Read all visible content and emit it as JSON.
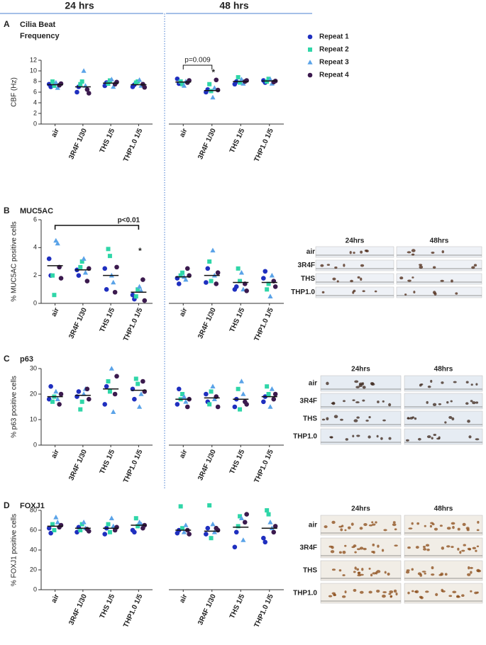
{
  "columns": [
    "24 hrs",
    "48 hrs"
  ],
  "legend": [
    {
      "name": "Repeat 1",
      "color": "#1f2fbf",
      "marker": "circle"
    },
    {
      "name": "Repeat 2",
      "color": "#2fd6a8",
      "marker": "square"
    },
    {
      "name": "Repeat 3",
      "color": "#5aa3e8",
      "marker": "triangle"
    },
    {
      "name": "Repeat 4",
      "color": "#3b1a4e",
      "marker": "circle"
    }
  ],
  "chart_data": [
    {
      "type": "scatter",
      "panel": "A",
      "title": [
        "Cilia Beat",
        "Frequency"
      ],
      "ylabel": "CBF (Hz)",
      "categories": [
        "air",
        "3R4F 1/30",
        "THS 1/5",
        "THP1.0 1/5"
      ],
      "ylim": [
        0,
        12
      ],
      "yticks": [
        0,
        2,
        4,
        6,
        8,
        10,
        12
      ],
      "series": [
        {
          "values": [
            [
              7.5,
              7.0
            ],
            [
              6.0,
              7.0
            ],
            [
              7.2,
              7.8
            ],
            [
              7.0,
              7.4
            ]
          ]
        },
        {
          "values": [
            [
              8.0,
              7.2
            ],
            [
              7.5,
              8.0
            ],
            [
              7.6,
              8.2
            ],
            [
              7.8,
              8.0
            ]
          ]
        },
        {
          "values": [
            [
              7.8,
              6.8
            ],
            [
              10.0,
              7.2
            ],
            [
              8.4,
              7.0
            ],
            [
              8.3,
              7.2
            ]
          ]
        },
        {
          "values": [
            [
              7.3,
              7.6
            ],
            [
              6.5,
              5.8
            ],
            [
              7.5,
              7.9
            ],
            [
              7.5,
              6.9
            ]
          ]
        }
      ],
      "means": [
        7.4,
        7.0,
        7.7,
        7.4
      ]
    },
    {
      "type": "scatter",
      "categories": [
        "air",
        "3R4F 1/30",
        "THS 1/5",
        "THP1.0 1/5"
      ],
      "ylim": [
        0,
        12
      ],
      "series": [
        {
          "values": [
            [
              8.5,
              7.6
            ],
            [
              6.0,
              6.5
            ],
            [
              7.5,
              8.0
            ],
            [
              8.2,
              7.8
            ]
          ]
        },
        {
          "values": [
            [
              8.0,
              7.5
            ],
            [
              7.5,
              6.2
            ],
            [
              8.8,
              7.8
            ],
            [
              8.0,
              8.5
            ]
          ]
        },
        {
          "values": [
            [
              7.2,
              8.0
            ],
            [
              5.0,
              6.8
            ],
            [
              8.4,
              7.6
            ],
            [
              8.4,
              7.6
            ]
          ]
        },
        {
          "values": [
            [
              7.8,
              8.2
            ],
            [
              8.3,
              6.4
            ],
            [
              8.0,
              8.2
            ],
            [
              7.9,
              8.1
            ]
          ]
        }
      ],
      "means": [
        7.9,
        6.3,
        8.0,
        8.1
      ],
      "annotations": [
        {
          "text": "p=0.009",
          "from": 0,
          "to": 1
        },
        {
          "text": "*",
          "category": 1
        }
      ]
    },
    {
      "type": "scatter",
      "panel": "B",
      "title": [
        "MUC5AC"
      ],
      "ylabel": "% MUC5AC positive cells",
      "categories": [
        "air",
        "3R4F 1/30",
        "THS 1/5",
        "THP1.0 1/5"
      ],
      "ylim": [
        0,
        6
      ],
      "yticks": [
        0,
        2,
        4,
        6
      ],
      "series": [
        {
          "values": [
            [
              3.2,
              2.0
            ],
            [
              2.4,
              2.0
            ],
            [
              2.5,
              1.0
            ],
            [
              0.6,
              0.3
            ]
          ]
        },
        {
          "values": [
            [
              2.0,
              0.6
            ],
            [
              2.6,
              3.0
            ],
            [
              3.9,
              3.4
            ],
            [
              0.5,
              1.0
            ]
          ]
        },
        {
          "values": [
            [
              4.5,
              4.3
            ],
            [
              3.2,
              2.2
            ],
            [
              2.0,
              1.5
            ],
            [
              1.2,
              0.9
            ]
          ]
        },
        {
          "values": [
            [
              2.6,
              1.8
            ],
            [
              1.6,
              2.5
            ],
            [
              0.8,
              2.6
            ],
            [
              1.7,
              0.2
            ]
          ]
        }
      ],
      "means": [
        2.7,
        2.4,
        2.0,
        0.8
      ],
      "annotations": [
        {
          "text": "p<0.01",
          "from": 0,
          "to": 3
        },
        {
          "text": "*",
          "category": 3
        }
      ]
    },
    {
      "type": "scatter",
      "categories": [
        "air",
        "3R4F 1/30",
        "THS 1/5",
        "THP1.0 1/5"
      ],
      "ylim": [
        0,
        6
      ],
      "series": [
        {
          "values": [
            [
              1.8,
              1.4
            ],
            [
              1.5,
              2.5
            ],
            [
              1.0,
              1.2
            ],
            [
              1.8,
              2.3
            ]
          ]
        },
        {
          "values": [
            [
              2.0,
              2.2
            ],
            [
              3.0,
              1.6
            ],
            [
              2.5,
              1.6
            ],
            [
              1.0,
              1.4
            ]
          ]
        },
        {
          "values": [
            [
              1.9,
              1.7
            ],
            [
              3.8,
              2.0
            ],
            [
              2.2,
              1.0
            ],
            [
              0.5,
              2.0
            ]
          ]
        },
        {
          "values": [
            [
              2.5,
              2.0
            ],
            [
              1.4,
              2.2
            ],
            [
              1.4,
              0.9
            ],
            [
              1.6,
              1.2
            ]
          ]
        }
      ],
      "means": [
        1.9,
        2.0,
        1.5,
        1.5
      ]
    },
    {
      "type": "scatter",
      "panel": "C",
      "title": [
        "p63"
      ],
      "ylabel": "% p63 positive cells",
      "categories": [
        "air",
        "3R4F 1/30",
        "THS 1/5",
        "THP1.0 1/5"
      ],
      "ylim": [
        0,
        30
      ],
      "yticks": [
        0,
        10,
        20,
        30
      ],
      "series": [
        {
          "values": [
            [
              18,
              23
            ],
            [
              19,
              21
            ],
            [
              16,
              23
            ],
            [
              22,
              18
            ]
          ]
        },
        {
          "values": [
            [
              17,
              19
            ],
            [
              14,
              17
            ],
            [
              25,
              21
            ],
            [
              26,
              24
            ]
          ]
        },
        {
          "values": [
            [
              21,
              18
            ],
            [
              20,
              22
            ],
            [
              30,
              13
            ],
            [
              15,
              20
            ]
          ]
        },
        {
          "values": [
            [
              16,
              20
            ],
            [
              22,
              18
            ],
            [
              20,
              27
            ],
            [
              25,
              21
            ]
          ]
        }
      ],
      "means": [
        19,
        19.5,
        22,
        21.5
      ]
    },
    {
      "type": "scatter",
      "categories": [
        "air",
        "3R4F 1/30",
        "THS 1/5",
        "THP1.0 1/5"
      ],
      "ylim": [
        0,
        30
      ],
      "series": [
        {
          "values": [
            [
              16,
              22
            ],
            [
              20,
              17
            ],
            [
              15,
              18
            ],
            [
              17,
              19
            ]
          ]
        },
        {
          "values": [
            [
              18,
              20
            ],
            [
              16,
              21
            ],
            [
              22,
              14
            ],
            [
              23,
              20
            ]
          ]
        },
        {
          "values": [
            [
              19,
              17
            ],
            [
              23,
              18
            ],
            [
              25,
              20
            ],
            [
              15,
              22
            ]
          ]
        },
        {
          "values": [
            [
              15,
              18
            ],
            [
              19,
              15
            ],
            [
              17,
              16
            ],
            [
              18,
              20
            ]
          ]
        }
      ],
      "means": [
        18,
        18.5,
        18,
        19
      ]
    },
    {
      "type": "scatter",
      "panel": "D",
      "title": [
        "FOXJ1"
      ],
      "ylabel": "% FOXJ1 positive cells",
      "categories": [
        "air",
        "3R4F 1/30",
        "THS 1/5",
        "THP1.0 1/5"
      ],
      "ylim": [
        0,
        80
      ],
      "yticks": [
        0,
        20,
        40,
        60,
        80
      ],
      "series": [
        {
          "values": [
            [
              62,
              57
            ],
            [
              58,
              63
            ],
            [
              56,
              62
            ],
            [
              60,
              58
            ]
          ]
        },
        {
          "values": [
            [
              66,
              60
            ],
            [
              60,
              66
            ],
            [
              66,
              58
            ],
            [
              72,
              64
            ]
          ]
        },
        {
          "values": [
            [
              73,
              68
            ],
            [
              68,
              62
            ],
            [
              72,
              64
            ],
            [
              68,
              66
            ]
          ]
        },
        {
          "values": [
            [
              63,
              65
            ],
            [
              61,
              59
            ],
            [
              60,
              63
            ],
            [
              62,
              65
            ]
          ]
        }
      ],
      "means": [
        64,
        62,
        62,
        65
      ]
    },
    {
      "type": "scatter",
      "categories": [
        "air",
        "3R4F 1/30",
        "THS 1/5",
        "THP1.0 1/5"
      ],
      "ylim": [
        0,
        80
      ],
      "series": [
        {
          "values": [
            [
              57,
              60
            ],
            [
              56,
              62
            ],
            [
              43,
              58
            ],
            [
              52,
              48
            ]
          ]
        },
        {
          "values": [
            [
              84,
              62
            ],
            [
              85,
              52
            ],
            [
              64,
              74
            ],
            [
              80,
              76
            ]
          ]
        },
        {
          "values": [
            [
              58,
              65
            ],
            [
              66,
              58
            ],
            [
              72,
              50
            ],
            [
              68,
              62
            ]
          ]
        },
        {
          "values": [
            [
              60,
              56
            ],
            [
              62,
              60
            ],
            [
              68,
              76
            ],
            [
              58,
              64
            ]
          ]
        }
      ],
      "means": [
        60,
        59,
        63,
        62
      ]
    }
  ],
  "images": [
    {
      "columns": [
        "24hrs",
        "48hrs"
      ],
      "rows": [
        "air",
        "3R4F",
        "THS",
        "THP1.0"
      ]
    },
    {
      "columns": [
        "24hrs",
        "48hrs"
      ],
      "rows": [
        "air",
        "3R4F",
        "THS",
        "THP1.0"
      ]
    },
    {
      "columns": [
        "24hrs",
        "48hrs"
      ],
      "rows": [
        "air",
        "3R4F",
        "THS",
        "THP1.0"
      ]
    }
  ]
}
